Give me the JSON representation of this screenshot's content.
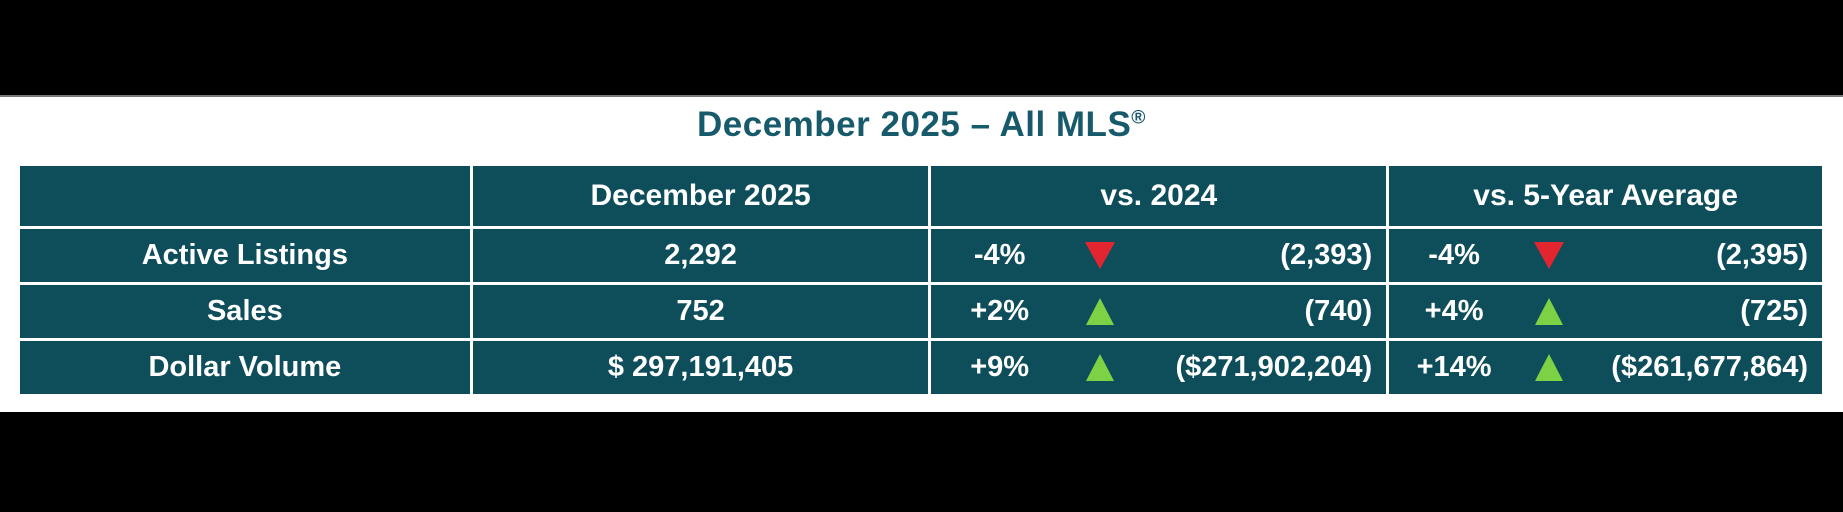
{
  "title": {
    "text": "December 2025 – All MLS",
    "registered_mark": "®"
  },
  "colors": {
    "table_teal": "#0E4E5B",
    "title_teal": "#175A6B",
    "text_white": "#FFFFFF",
    "up_green": "#7CD244",
    "down_red": "#E2262F",
    "letterbox_black": "#000000"
  },
  "table": {
    "columns": {
      "label": "",
      "current": "December 2025",
      "vs_2024": "vs. 2024",
      "vs_5yr": "vs. 5-Year Average"
    },
    "rows": [
      {
        "label": "Active Listings",
        "current": "2,292",
        "vs_2024": {
          "pct": "-4%",
          "direction": "down",
          "value": "(2,393)"
        },
        "vs_5yr": {
          "pct": "-4%",
          "direction": "down",
          "value": "(2,395)"
        }
      },
      {
        "label": "Sales",
        "current": "752",
        "vs_2024": {
          "pct": "+2%",
          "direction": "up",
          "value": "(740)"
        },
        "vs_5yr": {
          "pct": "+4%",
          "direction": "up",
          "value": "(725)"
        }
      },
      {
        "label": "Dollar Volume",
        "current": "$ 297,191,405",
        "vs_2024": {
          "pct": "+9%",
          "direction": "up",
          "value": "($271,902,204)"
        },
        "vs_5yr": {
          "pct": "+14%",
          "direction": "up",
          "value": "($261,677,864)"
        }
      }
    ]
  },
  "chart_data": {
    "type": "table",
    "title": "December 2025 – All MLS®",
    "columns": [
      "",
      "December 2025",
      "vs. 2024",
      "vs. 5-Year Average"
    ],
    "rows": [
      [
        "Active Listings",
        "2,292",
        "-4% ▼ (2,393)",
        "-4% ▼ (2,395)"
      ],
      [
        "Sales",
        "752",
        "+2% ▲ (740)",
        "+4% ▲ (725)"
      ],
      [
        "Dollar Volume",
        "$ 297,191,405",
        "+9% ▲ ($271,902,204)",
        "+14% ▲ ($261,677,864)"
      ]
    ],
    "notes": {
      "active_listings": {
        "current": 2292,
        "vs_2024_pct": -4,
        "vs_2024_value": 2393,
        "vs_5yr_pct": -4,
        "vs_5yr_value": 2395
      },
      "sales": {
        "current": 752,
        "vs_2024_pct": 2,
        "vs_2024_value": 740,
        "vs_5yr_pct": 4,
        "vs_5yr_value": 725
      },
      "dollar_volume": {
        "current": 297191405,
        "vs_2024_pct": 9,
        "vs_2024_value": 271902204,
        "vs_5yr_pct": 14,
        "vs_5yr_value": 261677864
      }
    }
  }
}
